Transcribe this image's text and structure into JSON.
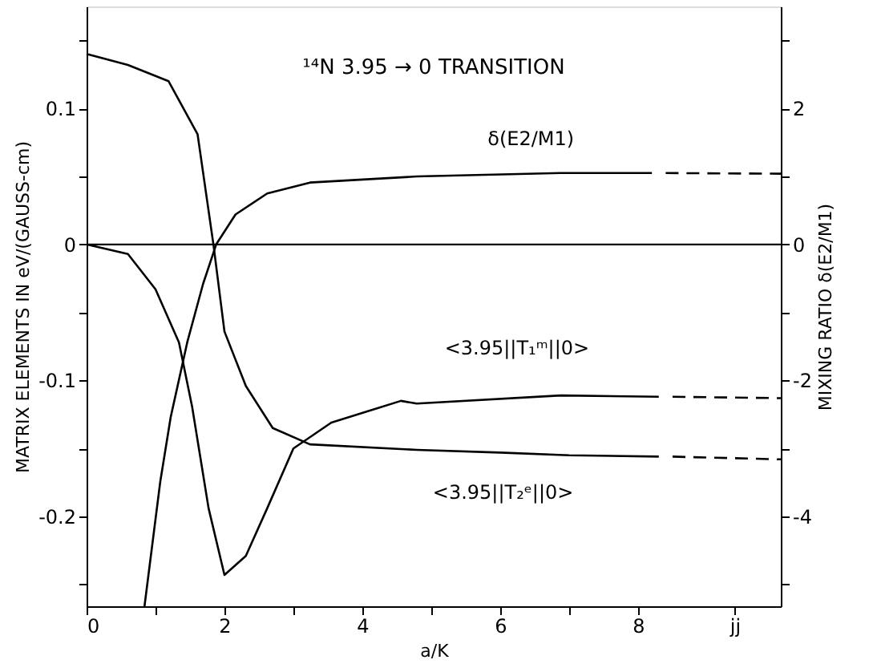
{
  "chart_data": {
    "type": "line",
    "title": "¹⁴N 3.95 → 0 TRANSITION",
    "xlabel": "a/K",
    "ylabel": "MATRIX ELEMENTS IN    eV/(GAUSS-cm)",
    "y2label": "MIXING RATIO δ(E2/M1)",
    "xlim": [
      0,
      10.07
    ],
    "xticks": [
      0,
      {
        "value": 1,
        "label": null
      },
      2,
      {
        "value": 3,
        "label": null
      },
      4,
      {
        "value": 5,
        "label": null
      },
      6,
      {
        "value": 7,
        "label": null
      },
      8,
      {
        "value": 9.4,
        "label": "jj"
      }
    ],
    "ylim": [
      -0.266,
      0.175
    ],
    "yticks": [
      {
        "value": 0.15,
        "label": null
      },
      0.1,
      {
        "value": 0.05,
        "label": null
      },
      0,
      {
        "value": -0.05,
        "label": null
      },
      -0.1,
      {
        "value": -0.15,
        "label": null
      },
      -0.2,
      {
        "value": -0.25,
        "label": null
      }
    ],
    "y2lim": [
      -5.32,
      3.5
    ],
    "y2ticks": [
      {
        "value": 3,
        "label": null
      },
      2,
      {
        "value": 1,
        "label": null
      },
      0,
      {
        "value": -1,
        "label": null
      },
      -2,
      {
        "value": -3,
        "label": null
      },
      -4,
      {
        "value": -5,
        "label": null
      }
    ],
    "grid": false,
    "marker": "none",
    "series": [
      {
        "color": "#000000",
        "line_style": "solid",
        "x": [
          0,
          0.6,
          1.19,
          1.61,
          1.84,
          2.0,
          2.31,
          2.7,
          3.24,
          4.79,
          6.0,
          7.0,
          8.3
        ],
        "values": [
          0.14,
          0.132,
          0.12,
          0.081,
          0,
          -0.064,
          -0.104,
          -0.135,
          -0.147,
          -0.151,
          -0.153,
          -0.155,
          -0.156
        ]
      },
      {
        "color": "#000000",
        "line_style": "dashed",
        "x": [
          8.5,
          10.07
        ],
        "values": [
          -0.156,
          -0.158
        ]
      },
      {
        "color": "#000000",
        "line_style": "solid",
        "x": [
          0,
          0.6,
          1.0,
          1.34,
          1.53,
          1.77,
          2.0,
          2.31,
          2.62,
          3.0,
          3.55,
          4.56,
          4.79,
          6.88,
          8.3
        ],
        "values": [
          0,
          -0.007,
          -0.033,
          -0.072,
          -0.119,
          -0.194,
          -0.243,
          -0.229,
          -0.194,
          -0.15,
          -0.131,
          -0.115,
          -0.117,
          -0.111,
          -0.112
        ]
      },
      {
        "color": "#000000",
        "line_style": "dashed",
        "x": [
          8.5,
          10.07
        ],
        "values": [
          -0.112,
          -0.113
        ]
      },
      {
        "axis": "y2",
        "color": "#000000",
        "line_style": "solid",
        "x": [
          0.84,
          1.07,
          1.22,
          1.46,
          1.69,
          1.88,
          2.16,
          2.62,
          3.24,
          4.79,
          6.88,
          8.2
        ],
        "values": [
          -5.32,
          -3.48,
          -2.54,
          -1.44,
          -0.58,
          0,
          0.44,
          0.75,
          0.91,
          1.0,
          1.05,
          1.05
        ]
      },
      {
        "axis": "y2",
        "color": "#000000",
        "line_style": "dashed",
        "x": [
          8.4,
          10.07
        ],
        "values": [
          1.05,
          1.04
        ]
      }
    ],
    "ref_lines": [
      {
        "axis": "y",
        "value": 0,
        "color": "#000000",
        "line_style": "solid"
      }
    ],
    "annotations": [
      "δ(E2/M1)",
      "<3.95||T₁ᵐ||0>",
      "<3.95||T₂ᵉ||0>"
    ]
  }
}
